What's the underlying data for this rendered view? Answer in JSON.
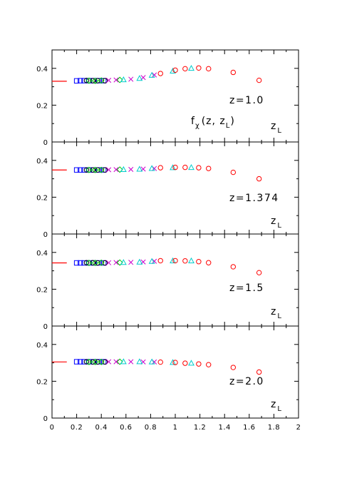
{
  "chart_data": {
    "type": "scatter",
    "x_axis": {
      "range": [
        0,
        2
      ],
      "tick_labels": [
        "0",
        "0.2",
        "0.4",
        "0.6",
        "0.8",
        "1",
        "1.2",
        "1.4",
        "1.6",
        "1.8",
        "2"
      ]
    },
    "y_axis": {
      "range": [
        0,
        0.5
      ],
      "tick_labels": [
        "0",
        "0.2",
        "0.4"
      ]
    },
    "series_styles": {
      "blue_squares": {
        "marker": "square",
        "color": "#0000ff"
      },
      "black_circles": {
        "marker": "circle",
        "color": "#000000"
      },
      "green_diamonds": {
        "marker": "diamond",
        "color": "#00cc00"
      },
      "magenta_crosses": {
        "marker": "cross",
        "color": "#cc00cc"
      },
      "cyan_triangles": {
        "marker": "triangle",
        "color": "#00cccc"
      },
      "red_circles": {
        "marker": "circle",
        "color": "#ff0000"
      }
    },
    "reference_color": "#ff0000",
    "panels": [
      {
        "label": "z=1.0",
        "function_label": "f",
        "function_sub": "χ",
        "function_args": "(z, z",
        "function_args_sub": "L",
        "function_close": ")",
        "axis_label": "z",
        "axis_label_sub": "L",
        "reference": {
          "y": 0.33,
          "x0": 0.0,
          "x1": 0.12
        },
        "series": {
          "blue_squares": {
            "x": [
              0.2,
              0.23,
              0.26,
              0.3,
              0.34,
              0.38,
              0.42
            ],
            "y": [
              0.332,
              0.333,
              0.333,
              0.333,
              0.333,
              0.333,
              0.333
            ]
          },
          "black_circles": {
            "x": [
              0.28,
              0.33,
              0.37,
              0.43
            ],
            "y": [
              0.334,
              0.333,
              0.333,
              0.333
            ]
          },
          "green_diamonds": {
            "x": [
              0.3,
              0.35,
              0.4,
              0.55
            ],
            "y": [
              0.333,
              0.332,
              0.334,
              0.337
            ]
          },
          "magenta_crosses": {
            "x": [
              0.46,
              0.52,
              0.64,
              0.74,
              0.83
            ],
            "y": [
              0.335,
              0.337,
              0.341,
              0.35,
              0.364
            ]
          },
          "cyan_triangles": {
            "x": [
              0.58,
              0.71,
              0.81,
              0.98,
              1.13
            ],
            "y": [
              0.338,
              0.345,
              0.362,
              0.385,
              0.4
            ]
          },
          "red_circles": {
            "x": [
              0.88,
              1.0,
              1.08,
              1.19,
              1.27,
              1.47,
              1.68
            ],
            "y": [
              0.372,
              0.39,
              0.398,
              0.402,
              0.398,
              0.378,
              0.335
            ]
          }
        }
      },
      {
        "label": "z=1.374",
        "axis_label": "z",
        "axis_label_sub": "L",
        "reference": {
          "y": 0.348,
          "x0": 0.0,
          "x1": 0.12
        },
        "series": {
          "blue_squares": {
            "x": [
              0.2,
              0.23,
              0.26,
              0.3,
              0.34,
              0.38,
              0.42
            ],
            "y": [
              0.348,
              0.348,
              0.348,
              0.348,
              0.348,
              0.348,
              0.348
            ]
          },
          "black_circles": {
            "x": [
              0.28,
              0.33,
              0.37,
              0.43
            ],
            "y": [
              0.348,
              0.348,
              0.348,
              0.348
            ]
          },
          "green_diamonds": {
            "x": [
              0.3,
              0.35,
              0.4,
              0.55
            ],
            "y": [
              0.348,
              0.348,
              0.348,
              0.35
            ]
          },
          "magenta_crosses": {
            "x": [
              0.46,
              0.52,
              0.64,
              0.74,
              0.83
            ],
            "y": [
              0.349,
              0.35,
              0.351,
              0.353,
              0.356
            ]
          },
          "cyan_triangles": {
            "x": [
              0.58,
              0.71,
              0.81,
              0.98,
              1.13
            ],
            "y": [
              0.35,
              0.352,
              0.356,
              0.36,
              0.361
            ]
          },
          "red_circles": {
            "x": [
              0.88,
              1.0,
              1.08,
              1.19,
              1.27,
              1.47,
              1.68
            ],
            "y": [
              0.36,
              0.362,
              0.362,
              0.36,
              0.356,
              0.335,
              0.3
            ]
          }
        }
      },
      {
        "label": "z=1.5",
        "axis_label": "z",
        "axis_label_sub": "L",
        "reference": {
          "y": 0.343,
          "x0": 0.0,
          "x1": 0.12
        },
        "series": {
          "blue_squares": {
            "x": [
              0.2,
              0.23,
              0.26,
              0.3,
              0.34,
              0.38,
              0.42
            ],
            "y": [
              0.343,
              0.343,
              0.343,
              0.343,
              0.343,
              0.343,
              0.343
            ]
          },
          "black_circles": {
            "x": [
              0.28,
              0.33,
              0.37,
              0.43
            ],
            "y": [
              0.344,
              0.344,
              0.343,
              0.343
            ]
          },
          "green_diamonds": {
            "x": [
              0.3,
              0.35,
              0.4,
              0.55
            ],
            "y": [
              0.343,
              0.343,
              0.344,
              0.345
            ]
          },
          "magenta_crosses": {
            "x": [
              0.46,
              0.52,
              0.64,
              0.74,
              0.83
            ],
            "y": [
              0.344,
              0.345,
              0.346,
              0.348,
              0.352
            ]
          },
          "cyan_triangles": {
            "x": [
              0.58,
              0.71,
              0.81,
              0.98,
              1.13
            ],
            "y": [
              0.345,
              0.347,
              0.351,
              0.354,
              0.354
            ]
          },
          "red_circles": {
            "x": [
              0.88,
              1.0,
              1.08,
              1.19,
              1.27,
              1.47,
              1.68
            ],
            "y": [
              0.355,
              0.355,
              0.354,
              0.35,
              0.344,
              0.322,
              0.29
            ]
          }
        }
      },
      {
        "label": "z=2.0",
        "axis_label": "z",
        "axis_label_sub": "L",
        "reference": {
          "y": 0.305,
          "x0": 0.0,
          "x1": 0.12
        },
        "series": {
          "blue_squares": {
            "x": [
              0.2,
              0.23,
              0.26,
              0.3,
              0.34,
              0.38,
              0.42
            ],
            "y": [
              0.306,
              0.306,
              0.306,
              0.306,
              0.306,
              0.306,
              0.306
            ]
          },
          "black_circles": {
            "x": [
              0.28,
              0.33,
              0.37,
              0.43
            ],
            "y": [
              0.306,
              0.305,
              0.305,
              0.305
            ]
          },
          "green_diamonds": {
            "x": [
              0.3,
              0.35,
              0.4,
              0.55
            ],
            "y": [
              0.305,
              0.305,
              0.305,
              0.306
            ]
          },
          "magenta_crosses": {
            "x": [
              0.46,
              0.52,
              0.64,
              0.74,
              0.83
            ],
            "y": [
              0.306,
              0.306,
              0.306,
              0.305,
              0.305
            ]
          },
          "cyan_triangles": {
            "x": [
              0.58,
              0.71,
              0.81,
              0.98,
              1.13
            ],
            "y": [
              0.306,
              0.306,
              0.305,
              0.302,
              0.298
            ]
          },
          "red_circles": {
            "x": [
              0.88,
              1.0,
              1.08,
              1.19,
              1.27,
              1.47,
              1.68
            ],
            "y": [
              0.304,
              0.302,
              0.298,
              0.294,
              0.29,
              0.275,
              0.25
            ]
          }
        }
      }
    ]
  }
}
